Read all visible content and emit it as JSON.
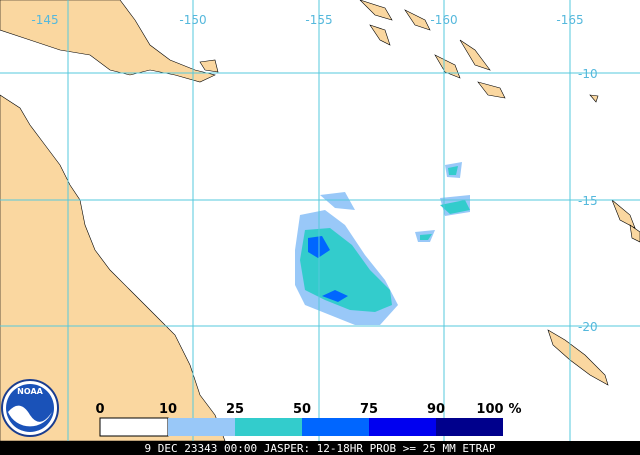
{
  "map": {
    "lon_labels": [
      "-145",
      "-150",
      "-155",
      "-160",
      "-165"
    ],
    "lat_labels": [
      "-10",
      "-15",
      "-20"
    ],
    "logo": "NOAA",
    "legend": {
      "labels": [
        "0",
        "10",
        "25",
        "50",
        "75",
        "90",
        "100"
      ],
      "unit": "%"
    },
    "footer": "9 DEC 23343 00:00 JASPER: 12-18HR PROB >= 25 MM ETRAP"
  }
}
